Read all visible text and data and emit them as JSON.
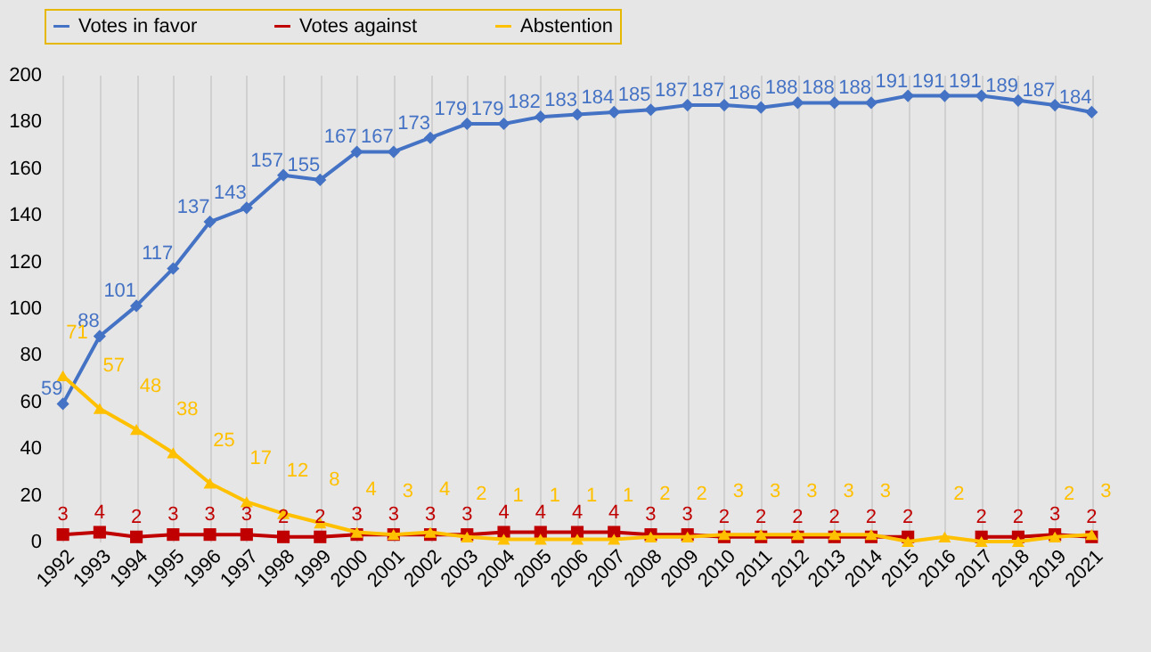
{
  "chart_data": {
    "type": "line",
    "categories": [
      "1992",
      "1993",
      "1994",
      "1995",
      "1996",
      "1997",
      "1998",
      "1999",
      "2000",
      "2001",
      "2002",
      "2003",
      "2004",
      "2005",
      "2006",
      "2007",
      "2008",
      "2009",
      "2010",
      "2011",
      "2012",
      "2013",
      "2014",
      "2015",
      "2016",
      "2017",
      "2018",
      "2019",
      "2021"
    ],
    "series": [
      {
        "name": "Votes in favor",
        "color": "#4472c4",
        "marker": "diamond",
        "values": [
          59,
          88,
          101,
          117,
          137,
          143,
          157,
          155,
          167,
          167,
          173,
          179,
          179,
          182,
          183,
          184,
          185,
          187,
          187,
          186,
          188,
          188,
          188,
          191,
          191,
          191,
          189,
          187,
          184
        ]
      },
      {
        "name": "Votes against",
        "color": "#c00000",
        "marker": "square",
        "values": [
          3,
          4,
          2,
          3,
          3,
          3,
          2,
          2,
          3,
          3,
          3,
          3,
          4,
          4,
          4,
          4,
          3,
          3,
          2,
          2,
          2,
          2,
          2,
          2,
          null,
          2,
          2,
          3,
          2
        ],
        "value_labels": [
          "3",
          "4",
          "2",
          "3",
          "3",
          "3",
          "2",
          "2",
          "3",
          "3",
          "3",
          "3",
          "4",
          "4",
          "4",
          "4",
          "3",
          "3",
          "2",
          "2",
          "2",
          "2",
          "2",
          "2",
          null,
          "2",
          "2",
          "3",
          "2"
        ]
      },
      {
        "name": "Abstention",
        "color": "#ffc000",
        "marker": "triangle",
        "values": [
          71,
          57,
          48,
          38,
          25,
          17,
          12,
          8,
          4,
          3,
          4,
          2,
          1,
          1,
          1,
          1,
          2,
          2,
          3,
          3,
          3,
          3,
          3,
          0,
          2,
          0,
          0,
          2,
          3
        ],
        "value_labels": [
          "71",
          "57",
          "48",
          "38",
          "25",
          "17",
          "12",
          "8",
          "4",
          "3",
          "4",
          "2",
          "1",
          "1",
          "1",
          "1",
          "2",
          "2",
          "3",
          "3",
          "3",
          "3",
          "3",
          null,
          "2",
          null,
          null,
          "2",
          "3"
        ]
      }
    ],
    "data_labels": true,
    "ylim": [
      0,
      200
    ],
    "yticks": [
      0,
      20,
      40,
      60,
      80,
      100,
      120,
      140,
      160,
      180,
      200
    ],
    "grid": "x",
    "legend": "top"
  }
}
